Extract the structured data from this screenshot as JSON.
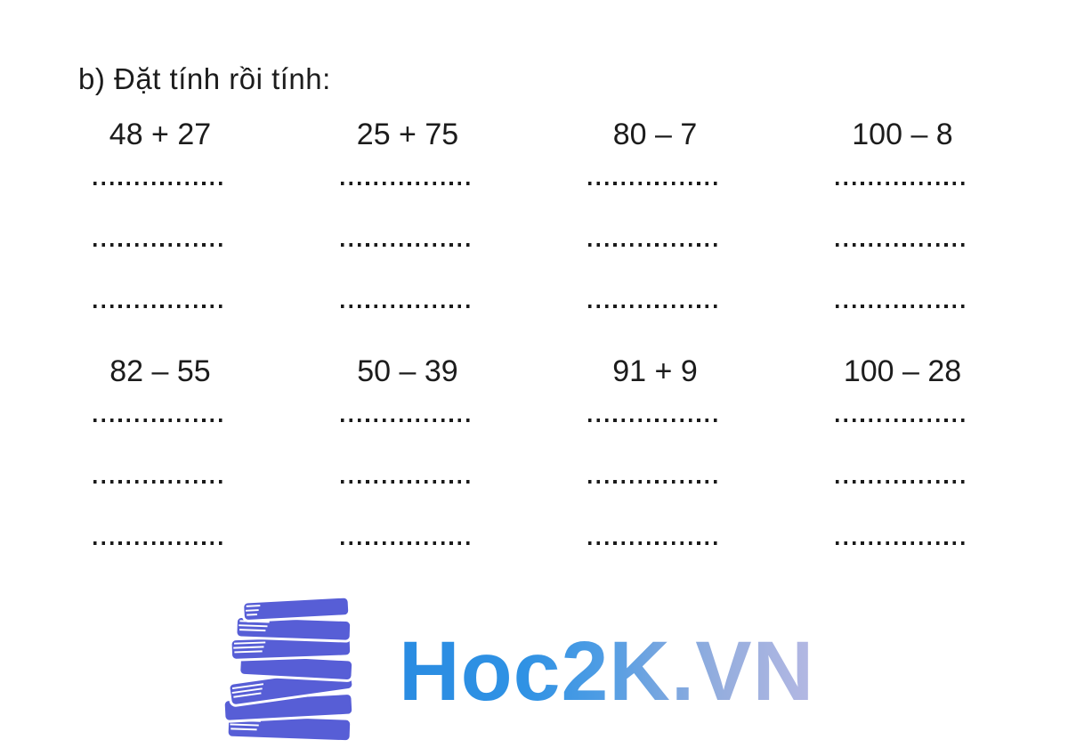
{
  "page": {
    "background": "#ffffff",
    "heading": "b) Đặt tính rồi tính:"
  },
  "problems": {
    "rows": [
      [
        "48 + 27",
        "25 + 75",
        "80 – 7",
        "100 – 8"
      ],
      [
        "82 – 55",
        "50 – 39",
        "91 + 9",
        "100 – 28"
      ]
    ],
    "answer_lines_per_problem": 3,
    "dots_per_line": 16,
    "dot_color": "#1a1a1a",
    "text_color": "#1c1c1c"
  },
  "logo": {
    "text": "Hoc2K.VN",
    "icon": "books-stack-icon",
    "colors": {
      "books": "#575ed6",
      "text_gradient_start": "#2a8ce2",
      "text_gradient_end": "#b4b8e3"
    }
  }
}
